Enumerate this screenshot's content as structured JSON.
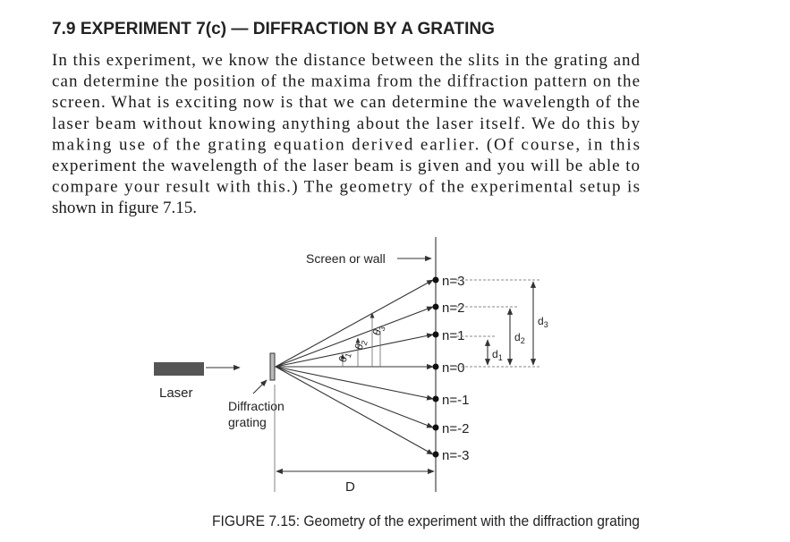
{
  "header": {
    "title": "7.9 EXPERIMENT 7(c) — DIFFRACTION BY A GRATING"
  },
  "paragraph": {
    "lines": [
      "In this experiment, we know the distance between the slits in the grating and",
      "can determine the position of the maxima from the diffraction pattern on the",
      "screen. What is exciting now is that we can determine the wavelength of the",
      "laser beam without knowing anything about the laser itself. We do this by",
      "making use of the grating equation derived earlier. (Of course, in this",
      "experiment the wavelength of the laser beam is given and you will be able to",
      "compare your result with this.) The geometry of the experimental setup is",
      "shown in figure 7.15."
    ]
  },
  "figure": {
    "screen_label": "Screen or wall",
    "laser_label": "Laser",
    "grating_label": [
      "Diffraction",
      "grating"
    ],
    "distance_label": "D",
    "orders": [
      "n=3",
      "n=2",
      "n=1",
      "n=0",
      "n=-1",
      "n=-2",
      "n=-3"
    ],
    "angles": [
      {
        "symbol": "θ",
        "subscript": "1"
      },
      {
        "symbol": "θ",
        "subscript": "2"
      },
      {
        "symbol": "θ",
        "subscript": "3"
      }
    ],
    "distances": [
      {
        "symbol": "d",
        "subscript": "1"
      },
      {
        "symbol": "d",
        "subscript": "2"
      },
      {
        "symbol": "d",
        "subscript": "3"
      }
    ],
    "caption": "FIGURE 7.15: Geometry of the experiment with the diffraction grating"
  }
}
